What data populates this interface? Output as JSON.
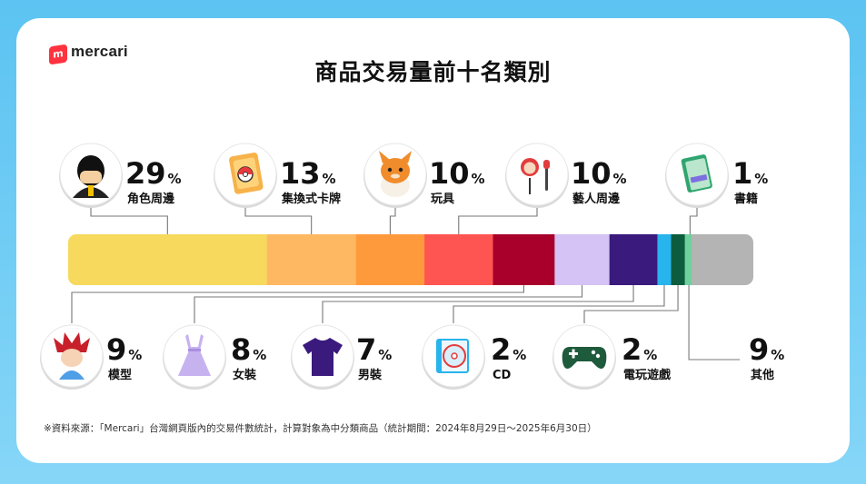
{
  "brand": {
    "name": "mercari",
    "mark": "m",
    "color": "#ff333f"
  },
  "chart_data": {
    "type": "bar",
    "orientation": "stacked-100-horizontal",
    "title": "商品交易量前十名類別",
    "categories": [
      "角色周邊",
      "集換式卡牌",
      "玩具",
      "藝人周邊",
      "模型",
      "女裝",
      "男裝",
      "CD",
      "電玩遊戲",
      "書籍",
      "其他"
    ],
    "values": [
      29,
      13,
      10,
      10,
      9,
      8,
      7,
      2,
      2,
      1,
      9
    ],
    "labels": [
      "29%",
      "13%",
      "10%",
      "10%",
      "9%",
      "8%",
      "7%",
      "2%",
      "2%",
      "1%",
      "9%"
    ],
    "value_suffix": "%",
    "colors": [
      "#f6d95d",
      "#ffb862",
      "#ff9a3c",
      "#ff5552",
      "#a8002a",
      "#d4c3f4",
      "#3b1a7d",
      "#28b4ec",
      "#0d5c3e",
      "#6fd09e",
      "#b4b4b4"
    ],
    "icons": [
      "character-figure-icon",
      "trading-card-icon",
      "toy-plush-icon",
      "idol-lightstick-icon",
      "model-figure-icon",
      "dress-icon",
      "tshirt-icon",
      "cd-disc-icon",
      "game-controller-icon",
      "book-icon",
      "none"
    ],
    "ylim": [
      0,
      100
    ]
  },
  "footnote": "※資料來源：「Mercari」台灣網頁版內的交易件數統計，計算對象為中分類商品（統計期間：2024年8月29日〜2025年6月30日）"
}
